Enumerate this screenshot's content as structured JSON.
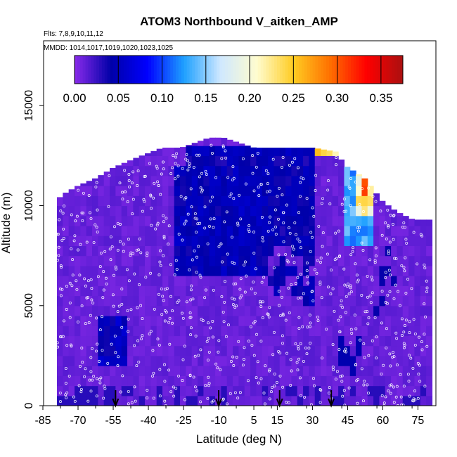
{
  "chart_data": {
    "type": "heatmap",
    "title": "ATOM3 Northbound V_aitken_AMP",
    "subtitle_flights": "Flts: 7,8,9,10,11,12",
    "subtitle_dates": "MMDD: 1014,1017,1019,1020,1023,1025",
    "xlabel": "Latitude (deg N)",
    "ylabel": "Altitude (m)",
    "xlim": [
      -85,
      85
    ],
    "ylim": [
      0,
      17500
    ],
    "x_ticks": [
      -85,
      -70,
      -55,
      -40,
      -25,
      -10,
      5,
      15,
      30,
      45,
      60,
      75
    ],
    "y_ticks": [
      0,
      5000,
      10000,
      15000
    ],
    "colorbar": {
      "ticks": [
        0.0,
        0.05,
        0.1,
        0.15,
        0.2,
        0.25,
        0.3,
        0.35
      ],
      "range": [
        0.0,
        0.375
      ],
      "colors": [
        "#8a2bea",
        "#0000a8",
        "#0000ff",
        "#1ea0ff",
        "#cfe8ff",
        "#fffccf",
        "#ffcc22",
        "#ff7000",
        "#ff0000",
        "#aa1010"
      ]
    },
    "markers": {
      "type": "downward-arrow",
      "latitudes": [
        -54,
        -10,
        16,
        38
      ]
    },
    "coverage": {
      "lat_range": [
        -79,
        79
      ],
      "top_altitude": [
        [
          -79,
          10300
        ],
        [
          -76,
          10600
        ],
        [
          -70,
          11000
        ],
        [
          -62,
          11400
        ],
        [
          -55,
          11900
        ],
        [
          -45,
          12400
        ],
        [
          -34,
          12900
        ],
        [
          -26,
          12900
        ],
        [
          -14,
          13400
        ],
        [
          -8,
          13400
        ],
        [
          5,
          12900
        ],
        [
          30,
          12900
        ],
        [
          40,
          12700
        ],
        [
          44,
          12000
        ],
        [
          52,
          11400
        ],
        [
          60,
          10200
        ],
        [
          66,
          9700
        ],
        [
          73,
          9300
        ],
        [
          79,
          9300
        ]
      ]
    },
    "features": [
      {
        "description": "Blue high layer",
        "lat": [
          -25,
          30
        ],
        "alt": [
          12400,
          12900
        ],
        "value": 0.05
      },
      {
        "description": "Upper tropospheric enhancement",
        "lat": [
          30,
          42
        ],
        "alt": [
          12400,
          12900
        ],
        "value": 0.25
      },
      {
        "description": "Upper tropospheric enhancement",
        "lat": [
          42,
          44
        ],
        "alt": [
          12400,
          12900
        ],
        "value": 0.33
      },
      {
        "description": "Enhanced aitken plume",
        "lat": [
          44,
          55
        ],
        "alt": [
          8000,
          12400
        ],
        "value": 0.13
      },
      {
        "description": "Enhanced aitken plume core",
        "lat": [
          48,
          55
        ],
        "alt": [
          9500,
          11800
        ],
        "value": 0.22
      },
      {
        "description": "Enhanced aitken plume peak",
        "lat": [
          50,
          54
        ],
        "alt": [
          10300,
          11700
        ],
        "value": 0.28
      }
    ]
  }
}
